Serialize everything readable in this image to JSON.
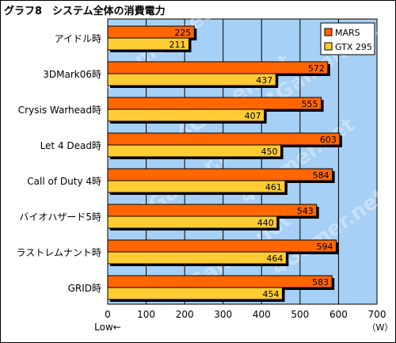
{
  "title": "グラフ8　システム全体の消費電力",
  "watermark": "4Gamer.net",
  "colors": {
    "plot_bg": "#a6d0f5",
    "mars": "#ff6600",
    "gtx295": "#ffcc33",
    "grid": "#000000",
    "shadow": "#000000"
  },
  "chart_data": {
    "type": "bar",
    "orientation": "horizontal",
    "categories": [
      "アイドル時",
      "3DMark06時",
      "Crysis Warhead時",
      "Let 4 Dead時",
      "Call of Duty 4時",
      "バイオハザード5時",
      "ラストレムナント時",
      "GRID時"
    ],
    "series": [
      {
        "name": "MARS",
        "values": [
          225,
          572,
          555,
          603,
          584,
          543,
          594,
          583
        ]
      },
      {
        "name": "GTX 295",
        "values": [
          211,
          437,
          407,
          450,
          461,
          440,
          464,
          454
        ]
      }
    ],
    "xlim": [
      0,
      700
    ],
    "xticks": [
      0,
      100,
      200,
      300,
      400,
      500,
      600,
      700
    ],
    "x_unit": "（W）",
    "x_note": "Low←",
    "grid": true,
    "legend_position": "top-right"
  }
}
